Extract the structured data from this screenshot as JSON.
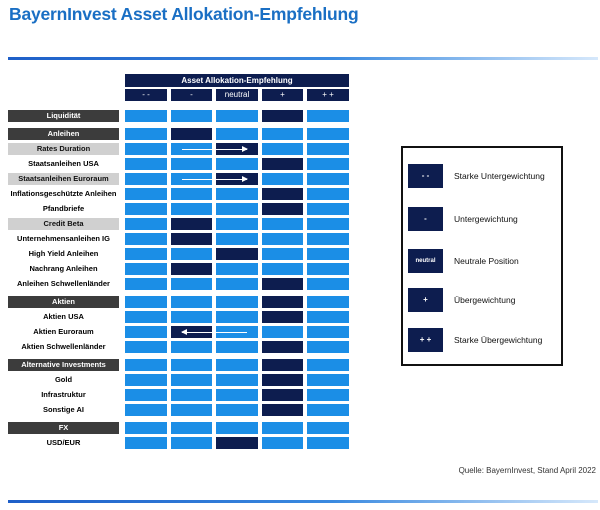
{
  "title": "BayernInvest Asset Allokation-Empfehlung",
  "source": "Quelle: BayernInvest, Stand April 2022",
  "chart_data": {
    "type": "table",
    "header": "Asset Allokation-Empfehlung",
    "columns": [
      "- -",
      "-",
      "neutral",
      "+",
      "+ +"
    ],
    "rows": [
      {
        "label": "Liquidität",
        "kind": "category",
        "position": "+",
        "arrow_from": null
      },
      {
        "label": "Anleihen",
        "kind": "category",
        "position": "-",
        "arrow_from": null
      },
      {
        "label": "Rates Duration",
        "kind": "sub",
        "position": "neutral",
        "arrow_from": "-"
      },
      {
        "label": "Staatsanleihen USA",
        "kind": "plain",
        "position": "+",
        "arrow_from": null
      },
      {
        "label": "Staatsanleihen Euroraum",
        "kind": "sub",
        "position": "neutral",
        "arrow_from": "-"
      },
      {
        "label": "Inflationsgeschützte Anleihen",
        "kind": "plain",
        "position": "+",
        "arrow_from": null
      },
      {
        "label": "Pfandbriefe",
        "kind": "plain",
        "position": "+",
        "arrow_from": null
      },
      {
        "label": "Credit Beta",
        "kind": "sub",
        "position": "-",
        "arrow_from": null
      },
      {
        "label": "Unternehmensanleihen IG",
        "kind": "plain",
        "position": "-",
        "arrow_from": null
      },
      {
        "label": "High Yield Anleihen",
        "kind": "plain",
        "position": "neutral",
        "arrow_from": null
      },
      {
        "label": "Nachrang Anleihen",
        "kind": "plain",
        "position": "-",
        "arrow_from": null
      },
      {
        "label": "Anleihen Schwellenländer",
        "kind": "plain",
        "position": "+",
        "arrow_from": null
      },
      {
        "label": "Aktien",
        "kind": "category",
        "position": "+",
        "arrow_from": null
      },
      {
        "label": "Aktien USA",
        "kind": "plain",
        "position": "+",
        "arrow_from": null
      },
      {
        "label": "Aktien Euroraum",
        "kind": "plain",
        "position": "-",
        "arrow_from": "neutral"
      },
      {
        "label": "Aktien Schwellenländer",
        "kind": "plain",
        "position": "+",
        "arrow_from": null
      },
      {
        "label": "Alternative Investments",
        "kind": "category",
        "position": "+",
        "arrow_from": null
      },
      {
        "label": "Gold",
        "kind": "plain",
        "position": "+",
        "arrow_from": null
      },
      {
        "label": "Infrastruktur",
        "kind": "plain",
        "position": "+",
        "arrow_from": null
      },
      {
        "label": "Sonstige AI",
        "kind": "plain",
        "position": "+",
        "arrow_from": null
      },
      {
        "label": "FX",
        "kind": "category",
        "position": null,
        "arrow_from": null
      },
      {
        "label": "USD/EUR",
        "kind": "plain",
        "position": "neutral",
        "arrow_from": null
      }
    ],
    "legend": [
      {
        "symbol": "- -",
        "text": "Starke Untergewichtung"
      },
      {
        "symbol": "-",
        "text": "Untergewichtung"
      },
      {
        "symbol": "neutral",
        "text": "Neutrale Position"
      },
      {
        "symbol": "+",
        "text": "Übergewichtung"
      },
      {
        "symbol": "+ +",
        "text": "Starke Übergewichtung"
      }
    ],
    "colors": {
      "cell": "#1b8ee6",
      "active": "#0d1d4f",
      "category": "#3c3c3c",
      "sub": "#d0d0d0",
      "title": "#1a6fc4"
    }
  }
}
